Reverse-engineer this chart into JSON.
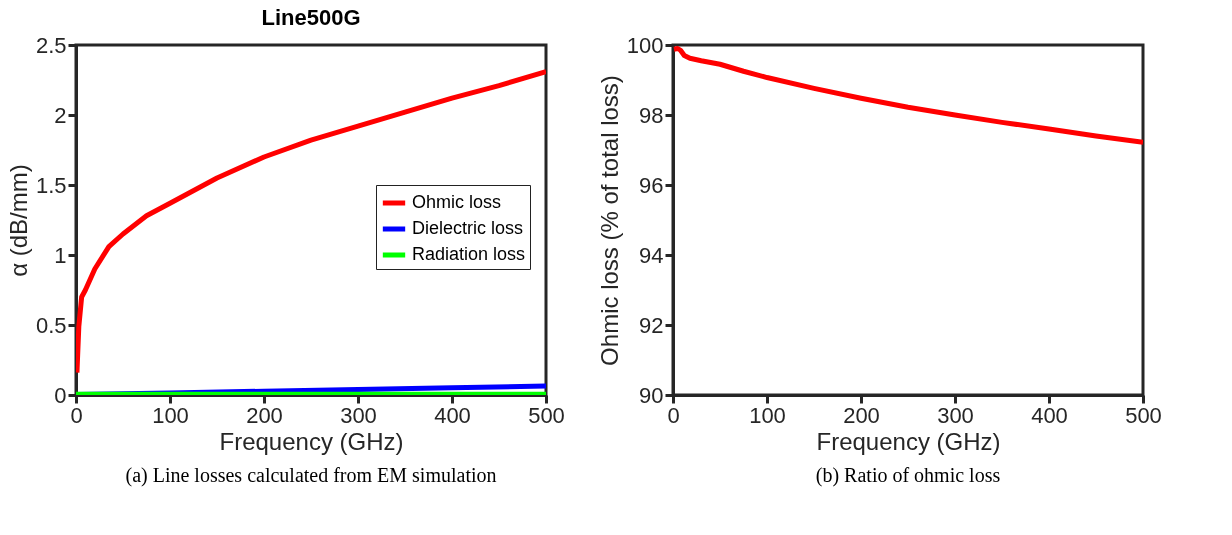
{
  "chart_data": [
    {
      "type": "line",
      "title": "Line500G",
      "xlabel": "Frequency (GHz)",
      "ylabel": "α (dB/mm)",
      "xlim": [
        0,
        500
      ],
      "xticks": [
        0,
        100,
        200,
        300,
        400,
        500
      ],
      "ylim": [
        0,
        2.5
      ],
      "yticks": [
        0,
        0.5,
        1,
        1.5,
        2,
        2.5
      ],
      "grid": false,
      "legend": "right",
      "marker": "none",
      "line_style": "solid",
      "annotations": [
        "(a) Line losses calculated from EM simulation"
      ],
      "series": [
        {
          "name": "Ohmic loss",
          "color": "#ff0000",
          "x": [
            1,
            3,
            6,
            10,
            20,
            35,
            50,
            75,
            100,
            150,
            200,
            250,
            300,
            350,
            400,
            450,
            500
          ],
          "values": [
            0.16,
            0.49,
            0.7,
            0.75,
            0.9,
            1.06,
            1.15,
            1.28,
            1.37,
            1.55,
            1.7,
            1.82,
            1.92,
            2.02,
            2.12,
            2.21,
            2.31
          ]
        },
        {
          "name": "Dielectric loss",
          "color": "#0000ff",
          "x": [
            0,
            100,
            200,
            300,
            400,
            500
          ],
          "values": [
            0.003,
            0.015,
            0.027,
            0.039,
            0.051,
            0.064
          ]
        },
        {
          "name": "Radiation loss",
          "color": "#00ff00",
          "x": [
            0,
            100,
            200,
            300,
            400,
            500
          ],
          "values": [
            0.005,
            0.005,
            0.005,
            0.005,
            0.005,
            0.005
          ]
        }
      ]
    },
    {
      "type": "line",
      "xlabel": "Frequency (GHz)",
      "ylabel": "Ohmic loss (% of total loss)",
      "xlim": [
        0,
        500
      ],
      "xticks": [
        0,
        100,
        200,
        300,
        400,
        500
      ],
      "ylim": [
        90,
        100
      ],
      "yticks": [
        90,
        92,
        94,
        96,
        98,
        100
      ],
      "grid": false,
      "marker": "none",
      "line_style": "solid",
      "annotations": [
        "(b) Ratio of ohmic loss"
      ],
      "series": [
        {
          "color": "#ff0000",
          "x": [
            1,
            5,
            8,
            12,
            18,
            30,
            50,
            75,
            100,
            150,
            200,
            250,
            300,
            350,
            400,
            450,
            500
          ],
          "values": [
            99.88,
            99.9,
            99.85,
            99.7,
            99.62,
            99.55,
            99.45,
            99.25,
            99.07,
            98.76,
            98.48,
            98.22,
            98.0,
            97.79,
            97.6,
            97.4,
            97.22
          ]
        }
      ]
    }
  ]
}
